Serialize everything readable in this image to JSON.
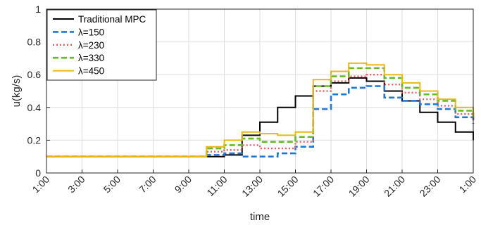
{
  "chart_data": {
    "type": "line",
    "step": true,
    "xlabel": "time",
    "ylabel": "u(kg/s)",
    "xlim": [
      1,
      25
    ],
    "ylim": [
      0,
      1
    ],
    "yticks": [
      0,
      0.2,
      0.4,
      0.6,
      0.8,
      1
    ],
    "ytick_labels": [
      "0",
      "0.2",
      "0.4",
      "0.6",
      "0.8",
      "1"
    ],
    "xticks": [
      1,
      3,
      5,
      7,
      9,
      11,
      13,
      15,
      17,
      19,
      21,
      23,
      25
    ],
    "xtick_labels": [
      "1:00",
      "3:00",
      "5:00",
      "7:00",
      "9:00",
      "11:00",
      "13:00",
      "15:00",
      "17:00",
      "19:00",
      "21:00",
      "23:00",
      "1:00"
    ],
    "grid": true,
    "legend_position": "top-left",
    "x": [
      1,
      2,
      3,
      4,
      5,
      6,
      7,
      8,
      9,
      10,
      11,
      12,
      13,
      14,
      15,
      16,
      17,
      18,
      19,
      20,
      21,
      22,
      23,
      24,
      25
    ],
    "series": [
      {
        "name": "Traditional MPC",
        "color": "#000000",
        "dash": "solid",
        "values": [
          0.1,
          0.1,
          0.1,
          0.1,
          0.1,
          0.1,
          0.1,
          0.1,
          0.1,
          0.1,
          0.11,
          0.23,
          0.31,
          0.4,
          0.47,
          0.53,
          0.55,
          0.58,
          0.56,
          0.5,
          0.44,
          0.37,
          0.31,
          0.25,
          0.2
        ]
      },
      {
        "name": "λ=150",
        "color": "#1f77d6",
        "dash": "dashed",
        "values": [
          0.1,
          0.1,
          0.1,
          0.1,
          0.1,
          0.1,
          0.1,
          0.1,
          0.1,
          0.11,
          0.12,
          0.1,
          0.1,
          0.12,
          0.16,
          0.39,
          0.48,
          0.52,
          0.53,
          0.46,
          0.44,
          0.42,
          0.39,
          0.34,
          0.3
        ]
      },
      {
        "name": "λ=230",
        "color": "#e85c5c",
        "dash": "dotted",
        "values": [
          0.1,
          0.1,
          0.1,
          0.1,
          0.1,
          0.1,
          0.1,
          0.1,
          0.1,
          0.13,
          0.14,
          0.17,
          0.15,
          0.15,
          0.19,
          0.5,
          0.56,
          0.59,
          0.6,
          0.54,
          0.49,
          0.45,
          0.41,
          0.36,
          0.32
        ]
      },
      {
        "name": "λ=330",
        "color": "#66bb22",
        "dash": "dashed",
        "values": [
          0.1,
          0.1,
          0.1,
          0.1,
          0.1,
          0.1,
          0.1,
          0.1,
          0.1,
          0.15,
          0.17,
          0.21,
          0.19,
          0.19,
          0.22,
          0.53,
          0.59,
          0.64,
          0.64,
          0.58,
          0.52,
          0.48,
          0.44,
          0.38,
          0.33
        ]
      },
      {
        "name": "λ=450",
        "color": "#e8b818",
        "dash": "solid",
        "values": [
          0.1,
          0.1,
          0.1,
          0.1,
          0.1,
          0.1,
          0.1,
          0.1,
          0.1,
          0.16,
          0.2,
          0.25,
          0.24,
          0.23,
          0.25,
          0.57,
          0.62,
          0.67,
          0.66,
          0.6,
          0.55,
          0.5,
          0.45,
          0.4,
          0.34
        ]
      }
    ]
  }
}
